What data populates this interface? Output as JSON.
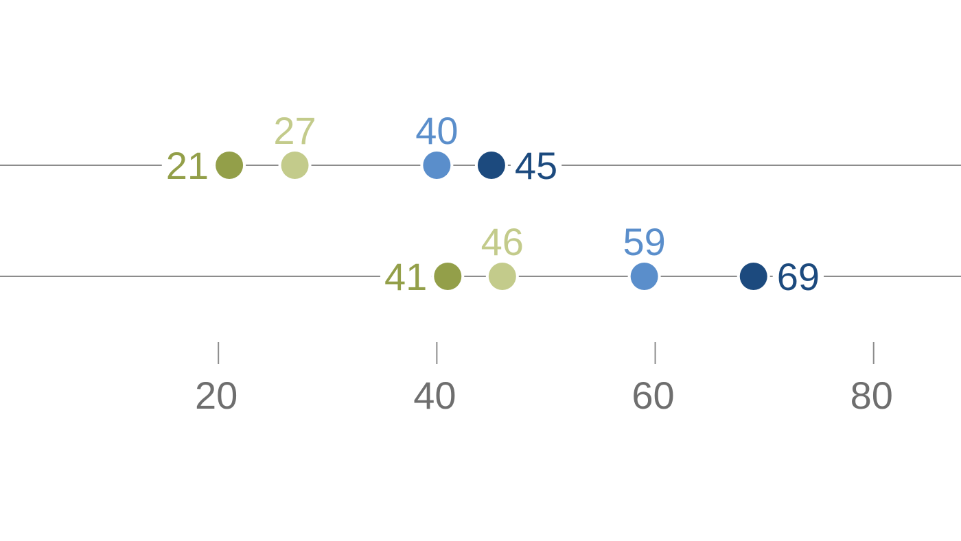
{
  "chart_data": {
    "type": "scatter",
    "title": "",
    "xlabel": "",
    "ylabel": "",
    "xlim": [
      0,
      88
    ],
    "grid": false,
    "legend": "none",
    "x_ticks": [
      20,
      40,
      60,
      80
    ],
    "series": [
      {
        "color": "#939f49",
        "values": [
          21,
          41
        ]
      },
      {
        "color": "#c3cb8b",
        "values": [
          27,
          46
        ]
      },
      {
        "color": "#5a8ecb",
        "values": [
          40,
          59
        ]
      },
      {
        "color": "#1c4a7e",
        "values": [
          45,
          69
        ]
      }
    ]
  }
}
